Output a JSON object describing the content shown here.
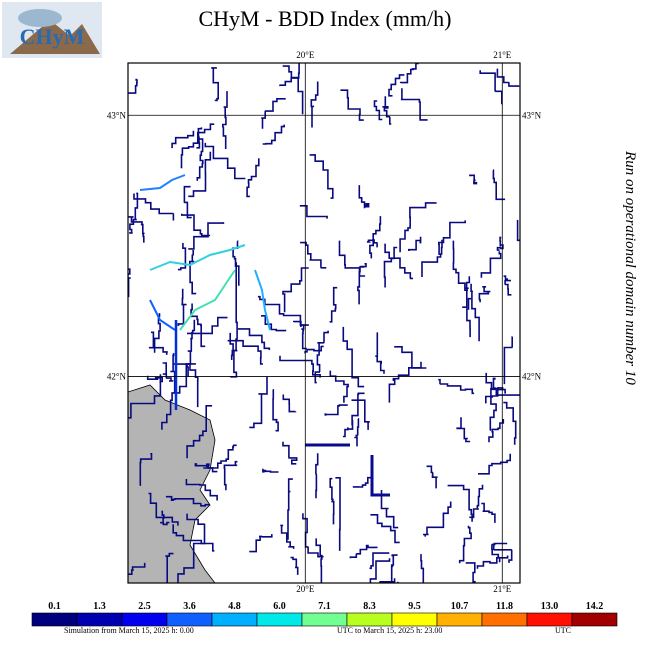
{
  "header": {
    "logo_text": "CHyM",
    "title": "CHyM - BDD Index (mm/h)"
  },
  "side_note": "Run on operational domain number 10",
  "map": {
    "xlim": [
      19.1,
      21.09
    ],
    "ylim": [
      41.21,
      43.2
    ],
    "lon_ticks": [
      {
        "value": 20,
        "label": "20°E"
      },
      {
        "value": 21,
        "label": "21°E"
      }
    ],
    "lat_ticks": [
      {
        "value": 43,
        "label": "43°N"
      },
      {
        "value": 42,
        "label": "42°N"
      }
    ]
  },
  "colorbar": {
    "ticks": [
      0.1,
      1.3,
      2.5,
      3.6,
      4.8,
      {
        "value": 6,
        "label": "6.0"
      },
      7.1,
      8.3,
      9.5,
      10.7,
      11.8,
      {
        "value": 13,
        "label": "13.0"
      },
      14.2
    ],
    "colors": [
      "#00007f",
      "#0000b0",
      "#0000ee",
      "#1060ff",
      "#00b0ff",
      "#00e8e8",
      "#70ff90",
      "#b8ff20",
      "#ffff00",
      "#ffb000",
      "#ff7000",
      "#ff1000",
      "#a00000"
    ]
  },
  "footer": [
    "Simulation from March 15, 2025 h: 0.00",
    "UTC to March 15, 2025 h: 23.00",
    "UTC"
  ]
}
